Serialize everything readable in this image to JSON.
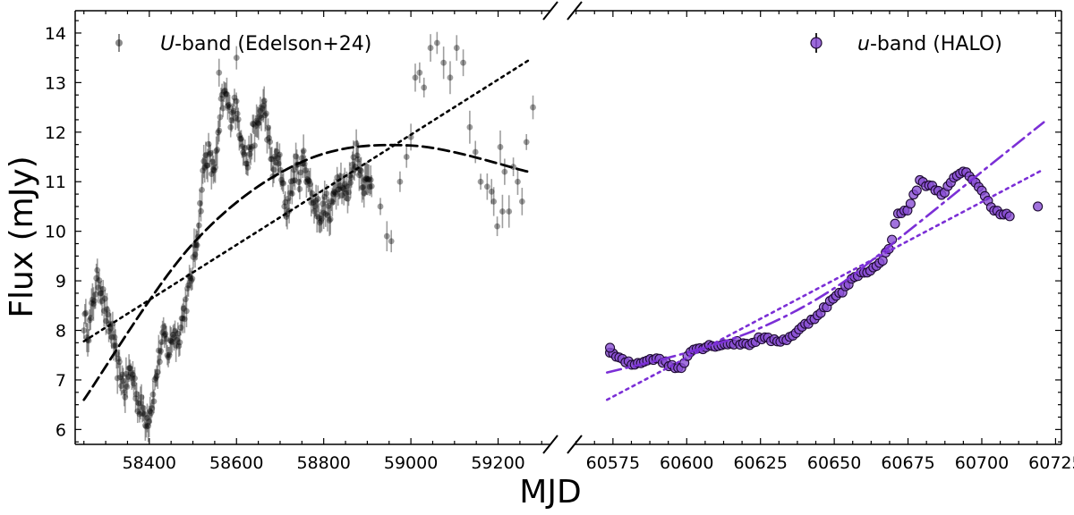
{
  "chart_data": [
    {
      "type": "scatter",
      "panel": "left",
      "xlabel": "MJD",
      "ylabel": "Flux (mJy)",
      "xlim": [
        58230,
        59320
      ],
      "ylim": [
        5.7,
        14.45
      ],
      "xticks": [
        58400,
        58600,
        58800,
        59000,
        59200
      ],
      "yticks": [
        6,
        7,
        8,
        9,
        10,
        11,
        12,
        13,
        14
      ],
      "legend": {
        "position": "top-left",
        "prefix": "U",
        "suffix": "-band (Edelson+24)"
      },
      "series": [
        {
          "name": "U-band (Edelson+24)",
          "color": "#000000",
          "anchors": [
            [
              58250,
              8.2
            ],
            [
              58262,
              8.0
            ],
            [
              58275,
              8.8
            ],
            [
              58285,
              9.1
            ],
            [
              58295,
              8.6
            ],
            [
              58305,
              8.1
            ],
            [
              58315,
              8.0
            ],
            [
              58325,
              7.3
            ],
            [
              58335,
              7.1
            ],
            [
              58345,
              6.8
            ],
            [
              58355,
              7.2
            ],
            [
              58365,
              7.0
            ],
            [
              58375,
              6.5
            ],
            [
              58385,
              6.4
            ],
            [
              58395,
              6.2
            ],
            [
              58405,
              6.5
            ],
            [
              58415,
              7.0
            ],
            [
              58425,
              7.6
            ],
            [
              58435,
              7.9
            ],
            [
              58445,
              7.5
            ],
            [
              58455,
              8.0
            ],
            [
              58465,
              7.8
            ],
            [
              58475,
              8.2
            ],
            [
              58485,
              8.6
            ],
            [
              58495,
              9.0
            ],
            [
              58505,
              9.6
            ],
            [
              58515,
              10.3
            ],
            [
              58525,
              11.3
            ],
            [
              58535,
              11.6
            ],
            [
              58545,
              11.2
            ],
            [
              58555,
              11.5
            ],
            [
              58565,
              12.5
            ],
            [
              58575,
              12.8
            ],
            [
              58585,
              12.3
            ],
            [
              58595,
              12.6
            ],
            [
              58605,
              12.2
            ],
            [
              58615,
              11.8
            ],
            [
              58625,
              11.3
            ],
            [
              58635,
              11.9
            ],
            [
              58645,
              12.0
            ],
            [
              58655,
              12.4
            ],
            [
              58665,
              12.5
            ],
            [
              58675,
              11.7
            ],
            [
              58685,
              11.2
            ],
            [
              58695,
              11.6
            ],
            [
              58705,
              10.9
            ],
            [
              58715,
              10.4
            ],
            [
              58725,
              10.8
            ],
            [
              58735,
              11.3
            ],
            [
              58745,
              11.1
            ],
            [
              58755,
              11.5
            ],
            [
              58765,
              11.0
            ],
            [
              58775,
              10.6
            ],
            [
              58785,
              10.5
            ],
            [
              58795,
              10.3
            ],
            [
              58805,
              10.6
            ],
            [
              58815,
              10.2
            ],
            [
              58825,
              10.9
            ],
            [
              58835,
              11.1
            ],
            [
              58845,
              10.9
            ],
            [
              58855,
              10.7
            ],
            [
              58865,
              11.3
            ],
            [
              58875,
              11.6
            ],
            [
              58885,
              11.2
            ],
            [
              58895,
              10.9
            ],
            [
              58910,
              11.1
            ]
          ],
          "extra_points": [
            [
              58560,
              13.2
            ],
            [
              58600,
              13.5
            ],
            [
              58930,
              10.5
            ],
            [
              58945,
              9.9
            ],
            [
              58955,
              9.8
            ],
            [
              58975,
              11.0
            ],
            [
              58990,
              11.5
            ],
            [
              59000,
              11.9
            ],
            [
              59010,
              13.1
            ],
            [
              59020,
              13.2
            ],
            [
              59030,
              12.9
            ],
            [
              59045,
              13.7
            ],
            [
              59060,
              13.8
            ],
            [
              59075,
              13.4
            ],
            [
              59090,
              13.1
            ],
            [
              59105,
              13.7
            ],
            [
              59120,
              13.4
            ],
            [
              59135,
              12.1
            ],
            [
              59148,
              11.6
            ],
            [
              59160,
              11.0
            ],
            [
              59175,
              10.9
            ],
            [
              59190,
              10.6
            ],
            [
              59205,
              11.7
            ],
            [
              59215,
              11.2
            ],
            [
              59225,
              10.4
            ],
            [
              59235,
              11.3
            ],
            [
              59245,
              11.0
            ],
            [
              59255,
              10.6
            ],
            [
              59265,
              11.8
            ],
            [
              59280,
              12.5
            ],
            [
              59210,
              10.4
            ],
            [
              59198,
              10.1
            ],
            [
              59185,
              10.8
            ]
          ],
          "fits": [
            {
              "style": "dotted",
              "x": [
                58250,
                59270
              ],
              "y": [
                7.78,
                13.45
              ]
            },
            {
              "style": "dashed",
              "x": [
                58250,
                58500,
                58750,
                59000,
                59270
              ],
              "y": [
                6.6,
                9.75,
                11.4,
                11.73,
                11.2
              ]
            }
          ]
        }
      ]
    },
    {
      "type": "scatter",
      "panel": "right",
      "xlabel": "MJD",
      "ylabel": "Flux (mJy)",
      "xlim": [
        60562,
        60727
      ],
      "ylim": [
        5.7,
        14.45
      ],
      "xticks": [
        60575,
        60600,
        60625,
        60650,
        60675,
        60700,
        60725
      ],
      "legend": {
        "position": "top-right",
        "prefix": "u",
        "suffix": "-band (HALO)"
      },
      "series": [
        {
          "name": "u-band (HALO)",
          "color": "#8a4fd4",
          "anchors": [
            [
              60574,
              7.55
            ],
            [
              60578,
              7.4
            ],
            [
              60582,
              7.3
            ],
            [
              60586,
              7.4
            ],
            [
              60590,
              7.45
            ],
            [
              60594,
              7.3
            ],
            [
              60598,
              7.22
            ],
            [
              60601,
              7.6
            ],
            [
              60605,
              7.65
            ],
            [
              60609,
              7.7
            ],
            [
              60613,
              7.72
            ],
            [
              60617,
              7.75
            ],
            [
              60621,
              7.72
            ],
            [
              60625,
              7.85
            ],
            [
              60629,
              7.8
            ],
            [
              60633,
              7.8
            ],
            [
              60637,
              7.95
            ],
            [
              60641,
              8.15
            ],
            [
              60645,
              8.35
            ],
            [
              60649,
              8.6
            ],
            [
              60653,
              8.8
            ],
            [
              60657,
              9.1
            ],
            [
              60661,
              9.2
            ],
            [
              60665,
              9.3
            ],
            [
              60669,
              9.7
            ],
            [
              60671,
              10.3
            ],
            [
              60675,
              10.45
            ],
            [
              60679,
              11.0
            ],
            [
              60683,
              10.9
            ],
            [
              60687,
              10.75
            ],
            [
              60691,
              11.1
            ],
            [
              60695,
              11.2
            ],
            [
              60699,
              10.9
            ],
            [
              60703,
              10.5
            ],
            [
              60707,
              10.35
            ],
            [
              60710,
              10.3
            ],
            [
              60719,
              10.5
            ]
          ],
          "fits": [
            {
              "style": "dotted",
              "x": [
                60573,
                60721
              ],
              "y": [
                6.6,
                11.25
              ]
            },
            {
              "style": "dashdot",
              "x": [
                60573,
                60600,
                60625,
                60650,
                60675,
                60700,
                60721
              ],
              "y": [
                7.15,
                7.55,
                8.05,
                8.85,
                10.0,
                11.2,
                12.2
              ]
            }
          ]
        }
      ]
    }
  ]
}
